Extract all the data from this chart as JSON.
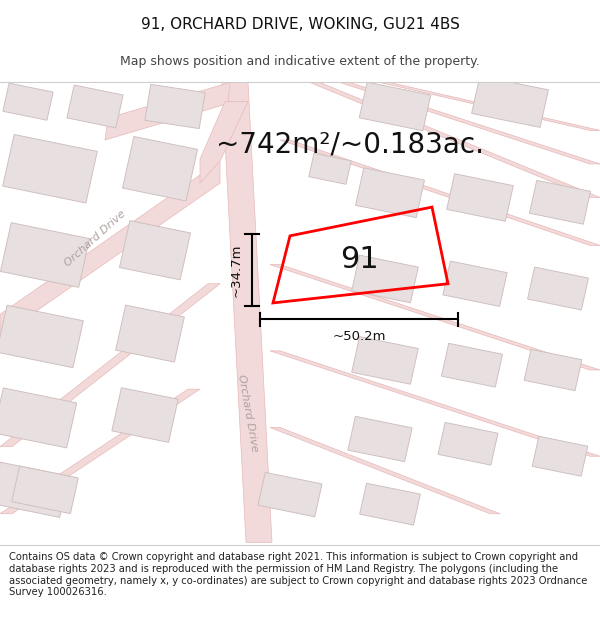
{
  "title": "91, ORCHARD DRIVE, WOKING, GU21 4BS",
  "subtitle": "Map shows position and indicative extent of the property.",
  "area_text": "~742m²/~0.183ac.",
  "width_label": "~50.2m",
  "height_label": "~34.7m",
  "property_number": "91",
  "footer": "Contains OS data © Crown copyright and database right 2021. This information is subject to Crown copyright and database rights 2023 and is reproduced with the permission of HM Land Registry. The polygons (including the associated geometry, namely x, y co-ordinates) are subject to Crown copyright and database rights 2023 Ordnance Survey 100026316.",
  "bg_color": "#ffffff",
  "map_bg": "#faf5f5",
  "road_fill": "#f2dada",
  "road_edge": "#e8b8b8",
  "building_fill": "#e8e0e0",
  "building_edge": "#d0c0c0",
  "property_color": "#ff0000",
  "dim_line_color": "#000000",
  "title_fontsize": 11,
  "subtitle_fontsize": 9,
  "footer_fontsize": 7.2,
  "area_fontsize": 20,
  "label_fontsize": 9.5,
  "number_fontsize": 22,
  "road_label_color": "#b0a0a0",
  "road_label_fontsize": 8
}
